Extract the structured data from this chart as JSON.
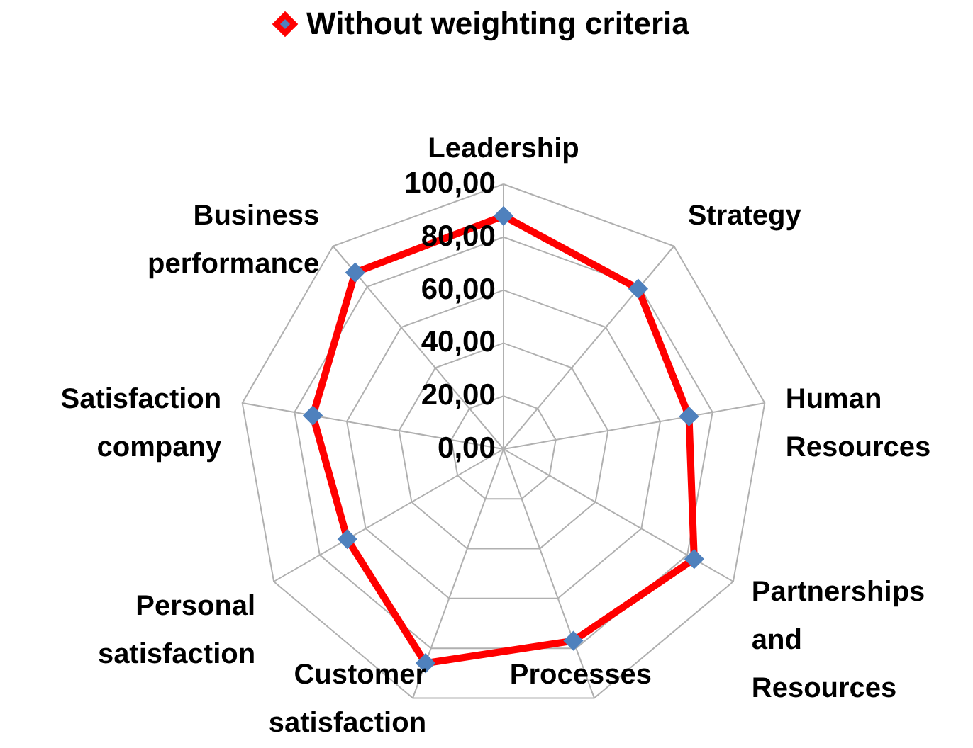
{
  "chart_data": {
    "type": "radar",
    "categories": [
      "Leadership",
      "Strategy",
      "Human Resources",
      "Partnerships and Resources",
      "Processes",
      "Customer satisfaction",
      "Personal satisfaction",
      "Satisfaction company",
      "Business performance"
    ],
    "series": [
      {
        "name": "Without weighting criteria",
        "color": "#ff0000",
        "values": [
          88,
          79,
          71,
          83,
          77,
          86,
          68,
          73,
          87
        ]
      }
    ],
    "ylim": [
      0,
      100
    ],
    "yticks": [
      {
        "value": 0,
        "label": "0,00"
      },
      {
        "value": 20,
        "label": "20,00"
      },
      {
        "value": 40,
        "label": "40,00"
      },
      {
        "value": 60,
        "label": "60,00"
      },
      {
        "value": 80,
        "label": "80,00"
      },
      {
        "value": 100,
        "label": "100,00"
      }
    ],
    "grid": true,
    "legend": "top",
    "marker": "diamond",
    "line_style": "solid"
  }
}
